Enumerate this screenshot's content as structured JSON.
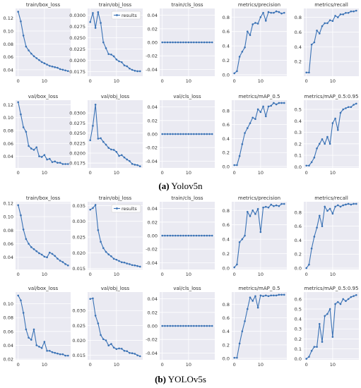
{
  "captions": [
    {
      "label": "(a)",
      "text": "Yolov5n"
    },
    {
      "label": "(b)",
      "text": "YOLOv5s"
    }
  ],
  "style": {
    "panel_bg": "#eaeaf2",
    "grid": "#ffffff",
    "line": "#3a72b5",
    "text": "#333333"
  },
  "legend_label": "results",
  "chart_data": [
    {
      "group": "a",
      "type": "line",
      "title": "train/box_loss",
      "ylim": [
        0.03,
        0.135
      ],
      "yticks": [
        0.04,
        0.06,
        0.08,
        0.1,
        0.12
      ],
      "xlim": [
        -1,
        20
      ],
      "xticks": [
        0,
        10
      ],
      "series": [
        {
          "values": [
            0.13,
            0.115,
            0.093,
            0.076,
            0.07,
            0.065,
            0.061,
            0.058,
            0.055,
            0.052,
            0.05,
            0.048,
            0.046,
            0.045,
            0.044,
            0.043,
            0.041,
            0.04,
            0.039,
            0.038
          ]
        }
      ]
    },
    {
      "group": "a",
      "type": "line",
      "title": "train/obj_loss",
      "ylim": [
        0.0165,
        0.0315
      ],
      "yticks": [
        0.0175,
        0.02,
        0.0225,
        0.025,
        0.0275,
        0.03
      ],
      "xlim": [
        -1,
        20
      ],
      "xticks": [
        0,
        10
      ],
      "legend": true,
      "series": [
        {
          "name": "results",
          "values": [
            0.0285,
            0.0305,
            0.0272,
            0.0307,
            0.0283,
            0.024,
            0.0227,
            0.0214,
            0.0213,
            0.0209,
            0.0202,
            0.0198,
            0.0196,
            0.0189,
            0.0187,
            0.0182,
            0.0179,
            0.0177,
            0.0176,
            0.0176
          ]
        }
      ]
    },
    {
      "group": "a",
      "type": "line",
      "title": "train/cls_loss",
      "ylim": [
        -0.05,
        0.05
      ],
      "yticks": [
        -0.04,
        -0.02,
        0.0,
        0.02,
        0.04
      ],
      "xlim": [
        -1,
        20
      ],
      "xticks": [
        0,
        10
      ],
      "series": [
        {
          "values": [
            0,
            0,
            0,
            0,
            0,
            0,
            0,
            0,
            0,
            0,
            0,
            0,
            0,
            0,
            0,
            0,
            0,
            0,
            0,
            0
          ]
        }
      ]
    },
    {
      "group": "a",
      "type": "line",
      "title": "metrics/precision",
      "ylim": [
        -0.02,
        0.92
      ],
      "yticks": [
        0.0,
        0.2,
        0.4,
        0.6,
        0.8
      ],
      "xlim": [
        -1,
        20
      ],
      "xticks": [
        0,
        10
      ],
      "series": [
        {
          "values": [
            0.02,
            0.05,
            0.25,
            0.32,
            0.38,
            0.6,
            0.55,
            0.7,
            0.72,
            0.71,
            0.8,
            0.86,
            0.75,
            0.87,
            0.86,
            0.86,
            0.88,
            0.87,
            0.85,
            0.86
          ]
        }
      ]
    },
    {
      "group": "a",
      "type": "line",
      "title": "metrics/recall",
      "ylim": [
        0.0,
        0.92
      ],
      "yticks": [
        0.2,
        0.4,
        0.6,
        0.8
      ],
      "xlim": [
        -1,
        20
      ],
      "xticks": [
        0,
        10
      ],
      "series": [
        {
          "values": [
            0.05,
            0.05,
            0.43,
            0.46,
            0.62,
            0.58,
            0.68,
            0.72,
            0.72,
            0.76,
            0.75,
            0.82,
            0.8,
            0.84,
            0.84,
            0.86,
            0.86,
            0.88,
            0.88,
            0.89
          ]
        }
      ]
    },
    {
      "group": "a",
      "type": "line",
      "title": "val/box_loss",
      "ylim": [
        0.022,
        0.127
      ],
      "yticks": [
        0.04,
        0.06,
        0.08,
        0.1,
        0.12
      ],
      "xlim": [
        -1,
        20
      ],
      "xticks": [
        0,
        10
      ],
      "series": [
        {
          "values": [
            0.124,
            0.105,
            0.085,
            0.078,
            0.056,
            0.052,
            0.05,
            0.054,
            0.04,
            0.039,
            0.042,
            0.035,
            0.036,
            0.031,
            0.032,
            0.03,
            0.03,
            0.028,
            0.028,
            0.028
          ]
        }
      ]
    },
    {
      "group": "a",
      "type": "line",
      "title": "val/obj_loss",
      "ylim": [
        0.0163,
        0.0332
      ],
      "yticks": [
        0.0175,
        0.02,
        0.0225,
        0.025,
        0.0275,
        0.03
      ],
      "xlim": [
        -1,
        20
      ],
      "xticks": [
        0,
        10
      ],
      "series": [
        {
          "values": [
            0.0232,
            0.0268,
            0.0321,
            0.0236,
            0.0237,
            0.0228,
            0.0221,
            0.0213,
            0.0209,
            0.0208,
            0.0203,
            0.0193,
            0.0195,
            0.0189,
            0.0184,
            0.018,
            0.0173,
            0.0171,
            0.017,
            0.0167
          ]
        }
      ]
    },
    {
      "group": "a",
      "type": "line",
      "title": "val/cls_loss",
      "ylim": [
        -0.05,
        0.05
      ],
      "yticks": [
        -0.04,
        -0.02,
        0.0,
        0.02,
        0.04
      ],
      "xlim": [
        -1,
        20
      ],
      "xticks": [
        0,
        10
      ],
      "series": [
        {
          "values": [
            0,
            0,
            0,
            0,
            0,
            0,
            0,
            0,
            0,
            0,
            0,
            0,
            0,
            0,
            0,
            0,
            0,
            0,
            0,
            0
          ]
        }
      ]
    },
    {
      "group": "a",
      "type": "line",
      "title": "metrics/mAP_0.5",
      "ylim": [
        -0.02,
        0.95
      ],
      "yticks": [
        0.0,
        0.2,
        0.4,
        0.6,
        0.8
      ],
      "xlim": [
        -1,
        20
      ],
      "xticks": [
        0,
        10
      ],
      "series": [
        {
          "values": [
            0.02,
            0.02,
            0.15,
            0.32,
            0.48,
            0.55,
            0.62,
            0.7,
            0.68,
            0.82,
            0.78,
            0.86,
            0.72,
            0.86,
            0.87,
            0.91,
            0.89,
            0.91,
            0.91,
            0.91
          ]
        }
      ]
    },
    {
      "group": "a",
      "type": "line",
      "title": "metrics/mAP_0.5:0.95",
      "ylim": [
        -0.01,
        0.58
      ],
      "yticks": [
        0.0,
        0.1,
        0.2,
        0.3,
        0.4,
        0.5
      ],
      "xlim": [
        -1,
        20
      ],
      "xticks": [
        0,
        10
      ],
      "series": [
        {
          "values": [
            0.01,
            0.01,
            0.04,
            0.08,
            0.16,
            0.2,
            0.24,
            0.2,
            0.26,
            0.2,
            0.38,
            0.42,
            0.32,
            0.47,
            0.5,
            0.51,
            0.52,
            0.52,
            0.54,
            0.55
          ]
        }
      ]
    },
    {
      "group": "b",
      "type": "line",
      "title": "train/box_loss",
      "ylim": [
        0.022,
        0.122
      ],
      "yticks": [
        0.04,
        0.06,
        0.08,
        0.1,
        0.12
      ],
      "xlim": [
        -1,
        20
      ],
      "xticks": [
        0,
        10
      ],
      "series": [
        {
          "values": [
            0.117,
            0.102,
            0.081,
            0.067,
            0.06,
            0.055,
            0.052,
            0.049,
            0.046,
            0.044,
            0.041,
            0.04,
            0.047,
            0.045,
            0.042,
            0.038,
            0.035,
            0.033,
            0.03,
            0.028
          ]
        }
      ]
    },
    {
      "group": "b",
      "type": "line",
      "title": "train/obj_loss",
      "ylim": [
        0.0147,
        0.0362
      ],
      "yticks": [
        0.015,
        0.02,
        0.025,
        0.03,
        0.035
      ],
      "xlim": [
        -1,
        20
      ],
      "xticks": [
        0,
        10
      ],
      "legend": true,
      "series": [
        {
          "name": "results",
          "values": [
            0.0337,
            0.0342,
            0.0352,
            0.0272,
            0.0235,
            0.0215,
            0.0203,
            0.0195,
            0.0189,
            0.0181,
            0.0178,
            0.0174,
            0.017,
            0.0169,
            0.0166,
            0.0164,
            0.0161,
            0.016,
            0.0158,
            0.0156
          ]
        }
      ]
    },
    {
      "group": "b",
      "type": "line",
      "title": "train/cls_loss",
      "ylim": [
        -0.05,
        0.05
      ],
      "yticks": [
        -0.04,
        -0.02,
        0.0,
        0.02,
        0.04
      ],
      "xlim": [
        -1,
        20
      ],
      "xticks": [
        0,
        10
      ],
      "series": [
        {
          "values": [
            0,
            0,
            0,
            0,
            0,
            0,
            0,
            0,
            0,
            0,
            0,
            0,
            0,
            0,
            0,
            0,
            0,
            0,
            0,
            0
          ]
        }
      ]
    },
    {
      "group": "b",
      "type": "line",
      "title": "metrics/precision",
      "ylim": [
        -0.02,
        0.92
      ],
      "yticks": [
        0.0,
        0.2,
        0.4,
        0.6,
        0.8
      ],
      "xlim": [
        -1,
        20
      ],
      "xticks": [
        0,
        10
      ],
      "series": [
        {
          "values": [
            0.01,
            0.05,
            0.36,
            0.4,
            0.45,
            0.78,
            0.72,
            0.8,
            0.75,
            0.82,
            0.5,
            0.84,
            0.85,
            0.84,
            0.88,
            0.86,
            0.87,
            0.86,
            0.89,
            0.89
          ]
        }
      ]
    },
    {
      "group": "b",
      "type": "line",
      "title": "metrics/recall",
      "ylim": [
        -0.02,
        0.95
      ],
      "yticks": [
        0.0,
        0.2,
        0.4,
        0.6,
        0.8
      ],
      "xlim": [
        -1,
        20
      ],
      "xticks": [
        0,
        10
      ],
      "series": [
        {
          "values": [
            0.0,
            0.05,
            0.28,
            0.45,
            0.58,
            0.75,
            0.6,
            0.88,
            0.82,
            0.85,
            0.78,
            0.88,
            0.9,
            0.88,
            0.9,
            0.91,
            0.92,
            0.91,
            0.92,
            0.92
          ]
        }
      ]
    },
    {
      "group": "b",
      "type": "line",
      "title": "val/box_loss",
      "ylim": [
        0.019,
        0.117
      ],
      "yticks": [
        0.02,
        0.04,
        0.06,
        0.08,
        0.1
      ],
      "xlim": [
        -1,
        20
      ],
      "xticks": [
        0,
        10
      ],
      "series": [
        {
          "values": [
            0.112,
            0.105,
            0.087,
            0.063,
            0.051,
            0.048,
            0.063,
            0.04,
            0.038,
            0.036,
            0.045,
            0.032,
            0.032,
            0.03,
            0.029,
            0.028,
            0.027,
            0.027,
            0.025,
            0.025
          ]
        }
      ]
    },
    {
      "group": "b",
      "type": "line",
      "title": "val/obj_loss",
      "ylim": [
        0.0135,
        0.0362
      ],
      "yticks": [
        0.015,
        0.02,
        0.025,
        0.03
      ],
      "xlim": [
        -1,
        20
      ],
      "xticks": [
        0,
        10
      ],
      "series": [
        {
          "values": [
            0.0339,
            0.0341,
            0.0283,
            0.0257,
            0.0218,
            0.0204,
            0.02,
            0.0183,
            0.0188,
            0.0176,
            0.0171,
            0.0173,
            0.0172,
            0.0165,
            0.0164,
            0.0158,
            0.0157,
            0.0155,
            0.015,
            0.0147
          ]
        }
      ]
    },
    {
      "group": "b",
      "type": "line",
      "title": "val/cls_loss",
      "ylim": [
        -0.05,
        0.05
      ],
      "yticks": [
        -0.04,
        -0.02,
        0.0,
        0.02,
        0.04
      ],
      "xlim": [
        -1,
        20
      ],
      "xticks": [
        0,
        10
      ],
      "series": [
        {
          "values": [
            0,
            0,
            0,
            0,
            0,
            0,
            0,
            0,
            0,
            0,
            0,
            0,
            0,
            0,
            0,
            0,
            0,
            0,
            0,
            0
          ]
        }
      ]
    },
    {
      "group": "b",
      "type": "line",
      "title": "metrics/mAP_0.5",
      "ylim": [
        -0.02,
        0.98
      ],
      "yticks": [
        0.0,
        0.2,
        0.4,
        0.6,
        0.8
      ],
      "xlim": [
        -1,
        20
      ],
      "xticks": [
        0,
        10
      ],
      "series": [
        {
          "values": [
            0.01,
            0.01,
            0.22,
            0.4,
            0.55,
            0.73,
            0.9,
            0.85,
            0.92,
            0.75,
            0.93,
            0.92,
            0.93,
            0.92,
            0.93,
            0.93,
            0.93,
            0.94,
            0.94,
            0.94
          ]
        }
      ]
    },
    {
      "group": "b",
      "type": "line",
      "title": "metrics/mAP_0.5:0.95",
      "ylim": [
        -0.01,
        0.67
      ],
      "yticks": [
        0.0,
        0.1,
        0.2,
        0.3,
        0.4,
        0.5,
        0.6
      ],
      "xlim": [
        -1,
        20
      ],
      "xticks": [
        0,
        10
      ],
      "series": [
        {
          "values": [
            0.0,
            0.02,
            0.08,
            0.12,
            0.12,
            0.35,
            0.17,
            0.43,
            0.45,
            0.5,
            0.22,
            0.55,
            0.57,
            0.55,
            0.6,
            0.58,
            0.6,
            0.62,
            0.63,
            0.64
          ]
        }
      ]
    }
  ]
}
